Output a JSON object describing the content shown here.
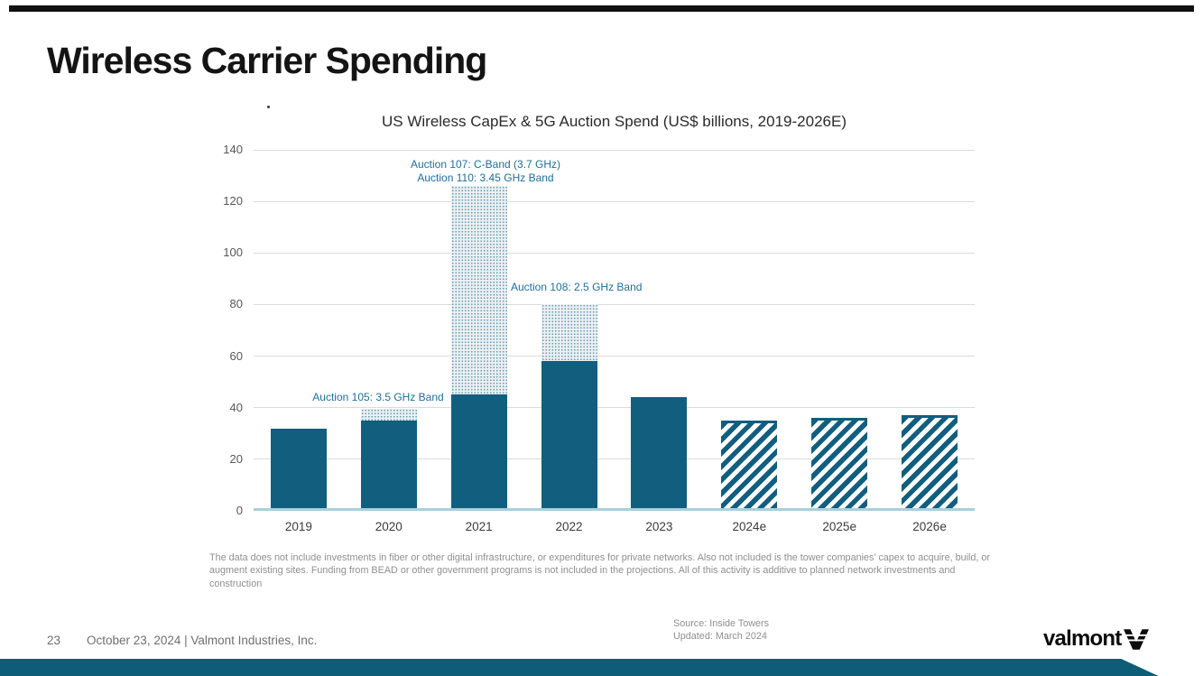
{
  "slide": {
    "title": "Wireless Carrier Spending",
    "footnote": "The data does not include  investments in fiber or other digital infrastructure, or expenditures for private networks. Also not included is the tower companies’ capex to acquire, build, or augment existing sites. Funding from BEAD or other government programs is not included in the projections. All of this activity is additive to planned network investments and construction",
    "source": {
      "line1": "Source: Inside Towers",
      "line2": "Updated: March 2024"
    },
    "footer": {
      "page_number": "23",
      "date_line": "October 23, 2024  | Valmont Industries, Inc."
    },
    "logo_text": "valmont"
  },
  "colors": {
    "bar_teal": "#115E7E",
    "stipple_fill": "#ECF1F4",
    "annotation_text": "#1E6F9A",
    "baseline_blue": "#A9CFDD",
    "gridline": "#DBDBDB",
    "bottom_bar": "#0D5D78",
    "top_bar": "#101010"
  },
  "chart_data": {
    "type": "bar",
    "title": "US Wireless CapEx & 5G Auction Spend (US$ billions, 2019-2026E)",
    "categories": [
      "2019",
      "2020",
      "2021",
      "2022",
      "2023",
      "2024e",
      "2025e",
      "2026e"
    ],
    "series": [
      {
        "name": "Wireless CapEx",
        "values": [
          32,
          35,
          45,
          58,
          44,
          35,
          36,
          37
        ],
        "styles": [
          "solid",
          "solid",
          "solid",
          "solid",
          "solid",
          "hatched",
          "hatched",
          "hatched"
        ]
      },
      {
        "name": "5G Auction Spend",
        "values": [
          0,
          4.6,
          81,
          22,
          0,
          0,
          0,
          0
        ],
        "style": "stippled"
      }
    ],
    "xlabel": "",
    "ylabel": "",
    "ylim": [
      0,
      140
    ],
    "yticks": [
      0,
      20,
      40,
      60,
      80,
      100,
      120,
      140
    ],
    "grid": "horizontal",
    "legend": "none",
    "annotations": [
      {
        "id": "auction-107-110",
        "lines": [
          "Auction 107: C-Band (3.7 GHz)",
          "Auction 110: 3.45 GHz Band"
        ]
      },
      {
        "id": "auction-108",
        "lines": [
          "Auction 108: 2.5 GHz Band"
        ]
      },
      {
        "id": "auction-105",
        "lines": [
          "Auction 105: 3.5 GHz Band"
        ]
      }
    ]
  }
}
